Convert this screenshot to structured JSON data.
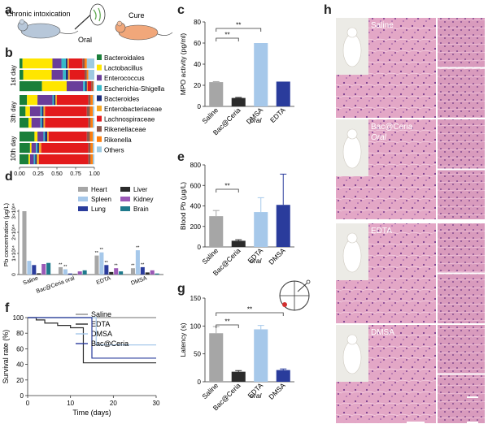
{
  "figure": {
    "panel_letters": {
      "a": "a",
      "b": "b",
      "c": "c",
      "d": "d",
      "e": "e",
      "f": "f",
      "g": "g",
      "h": "h"
    },
    "panel_a": {
      "left_label": "Chronic intoxication",
      "right_label": "Cure",
      "arrow_label": "Oral"
    },
    "panel_b": {
      "legend": [
        "Bacteroidales",
        "Lactobacillus",
        "Enterococcus",
        "Escherichia-Shigella",
        "Bacteroides",
        "Enterobacteriaceae",
        "Lachnospiraceae",
        "Rikenellaceae",
        "Rikenella",
        "Others"
      ],
      "legend_colors": [
        "#1a7f3a",
        "#ffe600",
        "#6a3d9a",
        "#36b9c9",
        "#1b2a7a",
        "#f5a623",
        "#e31a1c",
        "#8c564b",
        "#ff7f0e",
        "#9ecae1"
      ],
      "day_labels": [
        "1st day",
        "3th day",
        "10th day"
      ],
      "xticks": [
        "0.00",
        "0.25",
        "0.50",
        "0.75",
        "1.00"
      ]
    },
    "panel_h": {
      "labels": [
        "Saline",
        "Bac@Ceria",
        "Oral",
        "EDTA",
        "DMSA"
      ]
    }
  },
  "chart_data": [
    {
      "panel": "c",
      "type": "bar",
      "categories": [
        "Saline",
        "Bac@Ceria oral",
        "DMSA",
        "EDTA"
      ],
      "category_labels": [
        "Saline",
        "Bac@Ceria",
        "DMSA",
        "EDTA"
      ],
      "sub_label": "oral",
      "values": [
        23,
        8,
        60,
        23.5
      ],
      "errors": [
        0.5,
        0.5,
        0,
        0
      ],
      "colors": [
        "#a6a6a6",
        "#2b2b2b",
        "#a6c8ea",
        "#2a3c9c"
      ],
      "ylabel": "MPO activity (pg/ml)",
      "ylim": [
        0,
        80
      ],
      "yticks": [
        "0",
        "20",
        "40",
        "60",
        "80"
      ],
      "significance": [
        "**",
        "**"
      ]
    },
    {
      "panel": "e",
      "type": "bar",
      "categories": [
        "Saline",
        "Bac@Ceria oral",
        "EDTA",
        "DMSA"
      ],
      "category_labels": [
        "Saline",
        "Bac@Ceria",
        "EDTA",
        "DMSA"
      ],
      "sub_label": "oral",
      "values": [
        300,
        60,
        340,
        410
      ],
      "errors": [
        55,
        10,
        140,
        300
      ],
      "colors": [
        "#a6a6a6",
        "#2b2b2b",
        "#a6c8ea",
        "#2a3c9c"
      ],
      "ylabel": "Blood Pb (μg/L)",
      "ylim": [
        0,
        800
      ],
      "yticks": [
        "0",
        "200",
        "400",
        "600",
        "800"
      ],
      "significance": [
        "**"
      ]
    },
    {
      "panel": "g",
      "type": "bar",
      "categories": [
        "Saline",
        "Bac@Ceria oral",
        "EDTA",
        "DMSA"
      ],
      "category_labels": [
        "Saline",
        "Bac@Ceria",
        "EDTA",
        "DMSA"
      ],
      "sub_label": "oral",
      "values": [
        87,
        18,
        94,
        21
      ],
      "errors": [
        12,
        2,
        7,
        2
      ],
      "colors": [
        "#a6a6a6",
        "#2b2b2b",
        "#a6c8ea",
        "#2a3c9c"
      ],
      "ylabel": "Latency (s)",
      "ylim": [
        0,
        150
      ],
      "yticks": [
        "0",
        "50",
        "100",
        "150"
      ],
      "significance": [
        "**",
        "**"
      ]
    },
    {
      "panel": "f",
      "type": "line",
      "series": [
        {
          "name": "Saline",
          "color": "#8c8c8c",
          "x": [
            0,
            3,
            6,
            9,
            13,
            15,
            30
          ],
          "y": [
            100,
            100,
            100,
            100,
            100,
            100,
            100
          ]
        },
        {
          "name": "EDTA",
          "color": "#2b2b2b",
          "x": [
            0,
            2,
            4,
            7,
            10,
            13,
            30
          ],
          "y": [
            100,
            97,
            93,
            90,
            87,
            42,
            42
          ]
        },
        {
          "name": "DMSA",
          "color": "#a6c8ea",
          "x": [
            0,
            13,
            16,
            30
          ],
          "y": [
            100,
            100,
            65,
            65
          ]
        },
        {
          "name": "Bac@Ceria",
          "color": "#2a3c9c",
          "x": [
            0,
            13,
            15,
            30
          ],
          "y": [
            100,
            100,
            48,
            48
          ]
        }
      ],
      "xlabel": "Time (days)",
      "ylabel": "Survival rate (%)",
      "xlim": [
        0,
        30
      ],
      "ylim": [
        0,
        100
      ],
      "xticks": [
        "0",
        "10",
        "20",
        "30"
      ],
      "yticks": [
        "0",
        "20",
        "40",
        "60",
        "80",
        "100"
      ]
    },
    {
      "panel": "b",
      "type": "bar",
      "orientation": "horizontal-stacked",
      "categories": [
        "1st day",
        "1st day",
        "1st day",
        "3th day",
        "3th day",
        "3th day",
        "10th day",
        "10th day",
        "10th day"
      ],
      "series_order": [
        "Bacteroidales",
        "Lactobacillus",
        "Enterococcus",
        "Escherichia-Shigella",
        "Bacteroides",
        "Enterobacteriaceae",
        "Lachnospiraceae",
        "Rikenellaceae",
        "Rikenella",
        "Others"
      ],
      "rows": [
        [
          0.04,
          0.4,
          0.12,
          0.06,
          0.02,
          0.02,
          0.18,
          0.03,
          0.03,
          0.1
        ],
        [
          0.05,
          0.38,
          0.15,
          0.04,
          0.03,
          0.02,
          0.2,
          0.03,
          0.02,
          0.08
        ],
        [
          0.3,
          0.33,
          0.22,
          0.03,
          0.02,
          0.01,
          0.05,
          0.02,
          0.01,
          0.01
        ],
        [
          0.1,
          0.14,
          0.2,
          0.02,
          0.02,
          0.02,
          0.42,
          0.03,
          0.03,
          0.02
        ],
        [
          0.08,
          0.06,
          0.14,
          0.02,
          0.02,
          0.02,
          0.56,
          0.04,
          0.04,
          0.02
        ],
        [
          0.12,
          0.04,
          0.12,
          0.02,
          0.02,
          0.02,
          0.58,
          0.03,
          0.03,
          0.02
        ],
        [
          0.2,
          0.04,
          0.08,
          0.02,
          0.03,
          0.02,
          0.51,
          0.04,
          0.04,
          0.02
        ],
        [
          0.14,
          0.02,
          0.06,
          0.02,
          0.02,
          0.03,
          0.63,
          0.03,
          0.03,
          0.02
        ],
        [
          0.12,
          0.02,
          0.05,
          0.02,
          0.02,
          0.03,
          0.66,
          0.03,
          0.03,
          0.02
        ]
      ],
      "xlim": [
        0,
        1
      ]
    },
    {
      "panel": "d",
      "type": "bar",
      "groups": [
        "Saline",
        "Bac@Ceria oral",
        "EDTA",
        "DMSA"
      ],
      "group_labels": [
        "Saline",
        "Bac@Ceria oral",
        "EDTA",
        "DMSA"
      ],
      "series": [
        {
          "name": "Heart",
          "color": "#a6a6a6",
          "values": [
            300000000000000.0,
            35000000000000.0,
            90000000000000.0,
            30000000000000.0
          ]
        },
        {
          "name": "Spleen",
          "color": "#a6c8ea",
          "values": [
            65000000000000.0,
            25000000000000.0,
            105000000000000.0,
            115000000000000.0
          ]
        },
        {
          "name": "Lung",
          "color": "#2a3c9c",
          "values": [
            45000000000000.0,
            5000000000000.0,
            45000000000000.0,
            35000000000000.0
          ]
        },
        {
          "name": "Liver",
          "color": "#2b2b2b",
          "values": [
            6000000000000.0,
            3000000000000.0,
            12000000000000.0,
            10000000000000.0
          ]
        },
        {
          "name": "Kidney",
          "color": "#9b59b6",
          "values": [
            50000000000000.0,
            15000000000000.0,
            30000000000000.0,
            20000000000000.0
          ]
        },
        {
          "name": "Brain",
          "color": "#1f7a8c",
          "values": [
            55000000000000.0,
            20000000000000.0,
            15000000000000.0,
            5000000000000.0
          ]
        }
      ],
      "ylabel": "Pb concentration (μg/L)",
      "ylim": [
        0,
        300000000000000.0
      ],
      "yticks": [
        "0",
        "1×10¹⁴",
        "2×10¹⁴",
        "3×10¹⁴"
      ]
    }
  ]
}
